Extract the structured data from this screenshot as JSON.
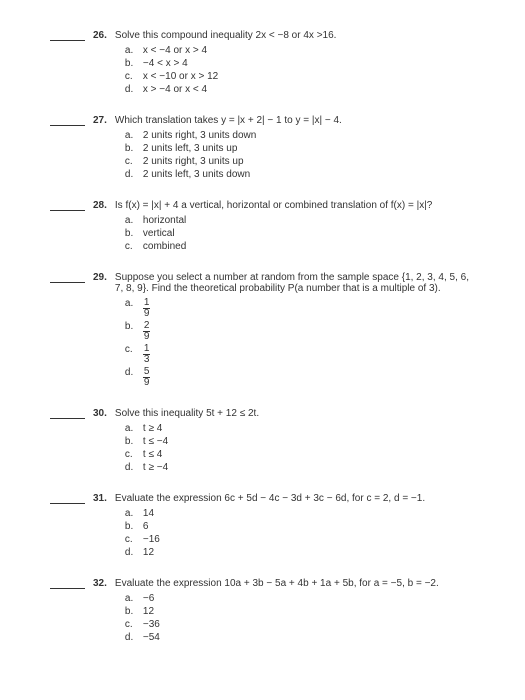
{
  "questions": [
    {
      "number": "26.",
      "text": "Solve this compound inequality 2x < −8 or 4x >16.",
      "options": [
        {
          "letter": "a.",
          "text": "x < −4 or x > 4"
        },
        {
          "letter": "b.",
          "text": "−4 < x > 4"
        },
        {
          "letter": "c.",
          "text": "x < −10 or x > 12"
        },
        {
          "letter": "d.",
          "text": "x > −4 or x < 4"
        }
      ]
    },
    {
      "number": "27.",
      "text": "Which translation takes y = |x + 2| − 1 to y = |x| − 4.",
      "options": [
        {
          "letter": "a.",
          "text": "2 units right, 3 units down"
        },
        {
          "letter": "b.",
          "text": "2 units left, 3 units up"
        },
        {
          "letter": "c.",
          "text": "2 units right, 3 units up"
        },
        {
          "letter": "d.",
          "text": "2 units left, 3 units down"
        }
      ]
    },
    {
      "number": "28.",
      "text": "Is f(x) = |x| + 4 a vertical, horizontal or combined translation of f(x) = |x|?",
      "options": [
        {
          "letter": "a.",
          "text": "horizontal"
        },
        {
          "letter": "b.",
          "text": "vertical"
        },
        {
          "letter": "c.",
          "text": "combined"
        }
      ]
    },
    {
      "number": "29.",
      "text": "Suppose you select a number at random from the sample space\n{1, 2, 3, 4, 5, 6, 7, 8, 9}. Find the theoretical probability P(a number that is a multiple of 3).",
      "options": [
        {
          "letter": "a.",
          "fraction": {
            "num": "1",
            "den": "9"
          }
        },
        {
          "letter": "b.",
          "fraction": {
            "num": "2",
            "den": "9"
          }
        },
        {
          "letter": "c.",
          "fraction": {
            "num": "1",
            "den": "3"
          }
        },
        {
          "letter": "d.",
          "fraction": {
            "num": "5",
            "den": "9"
          }
        }
      ]
    },
    {
      "number": "30.",
      "text": "Solve this inequality  5t  + 12 ≤ 2t.",
      "options": [
        {
          "letter": "a.",
          "text": "t ≥ 4"
        },
        {
          "letter": "b.",
          "text": "t ≤ −4"
        },
        {
          "letter": "c.",
          "text": "t ≤ 4"
        },
        {
          "letter": "d.",
          "text": "t ≥ −4"
        }
      ]
    },
    {
      "number": "31.",
      "text": "Evaluate the expression 6c + 5d − 4c − 3d + 3c − 6d, for c = 2, d = −1.",
      "options": [
        {
          "letter": "a.",
          "text": "14"
        },
        {
          "letter": "b.",
          "text": "6"
        },
        {
          "letter": "c.",
          "text": "−16"
        },
        {
          "letter": "d.",
          "text": "12"
        }
      ]
    },
    {
      "number": "32.",
      "text": "Evaluate the expression 10a + 3b − 5a + 4b + 1a + 5b, for a = −5, b = −2.",
      "options": [
        {
          "letter": "a.",
          "text": "−6"
        },
        {
          "letter": "b.",
          "text": "12"
        },
        {
          "letter": "c.",
          "text": "−36"
        },
        {
          "letter": "d.",
          "text": "−54"
        }
      ]
    }
  ]
}
